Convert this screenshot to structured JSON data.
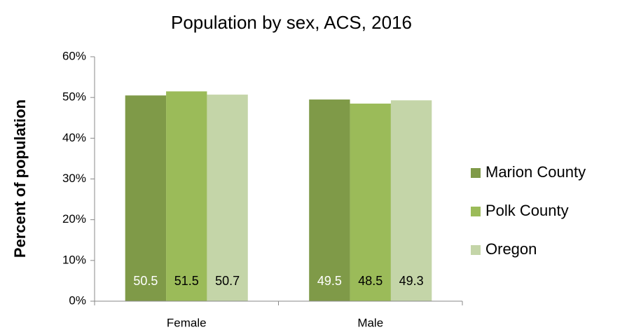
{
  "chart_data": {
    "type": "bar",
    "title": "Population by sex, ACS, 2016",
    "y_label": "Percent of population",
    "categories": [
      "Female",
      "Male"
    ],
    "series": [
      {
        "name": "Marion County",
        "color": "#7f9a48",
        "label_color": "#ffffff",
        "values": [
          50.5,
          49.5
        ]
      },
      {
        "name": "Polk County",
        "color": "#9bbb59",
        "label_color": "#000000",
        "values": [
          51.5,
          48.5
        ]
      },
      {
        "name": "Oregon",
        "color": "#c4d5a8",
        "label_color": "#000000",
        "values": [
          50.7,
          49.3
        ]
      }
    ],
    "ylim": [
      0,
      60
    ],
    "yticks": [
      {
        "value": 0,
        "label": "0%"
      },
      {
        "value": 10,
        "label": "10%"
      },
      {
        "value": 20,
        "label": "20%"
      },
      {
        "value": 30,
        "label": "30%"
      },
      {
        "value": 40,
        "label": "40%"
      },
      {
        "value": 50,
        "label": "50%"
      },
      {
        "value": 60,
        "label": "60%"
      }
    ],
    "grid": false,
    "legend": "right"
  }
}
